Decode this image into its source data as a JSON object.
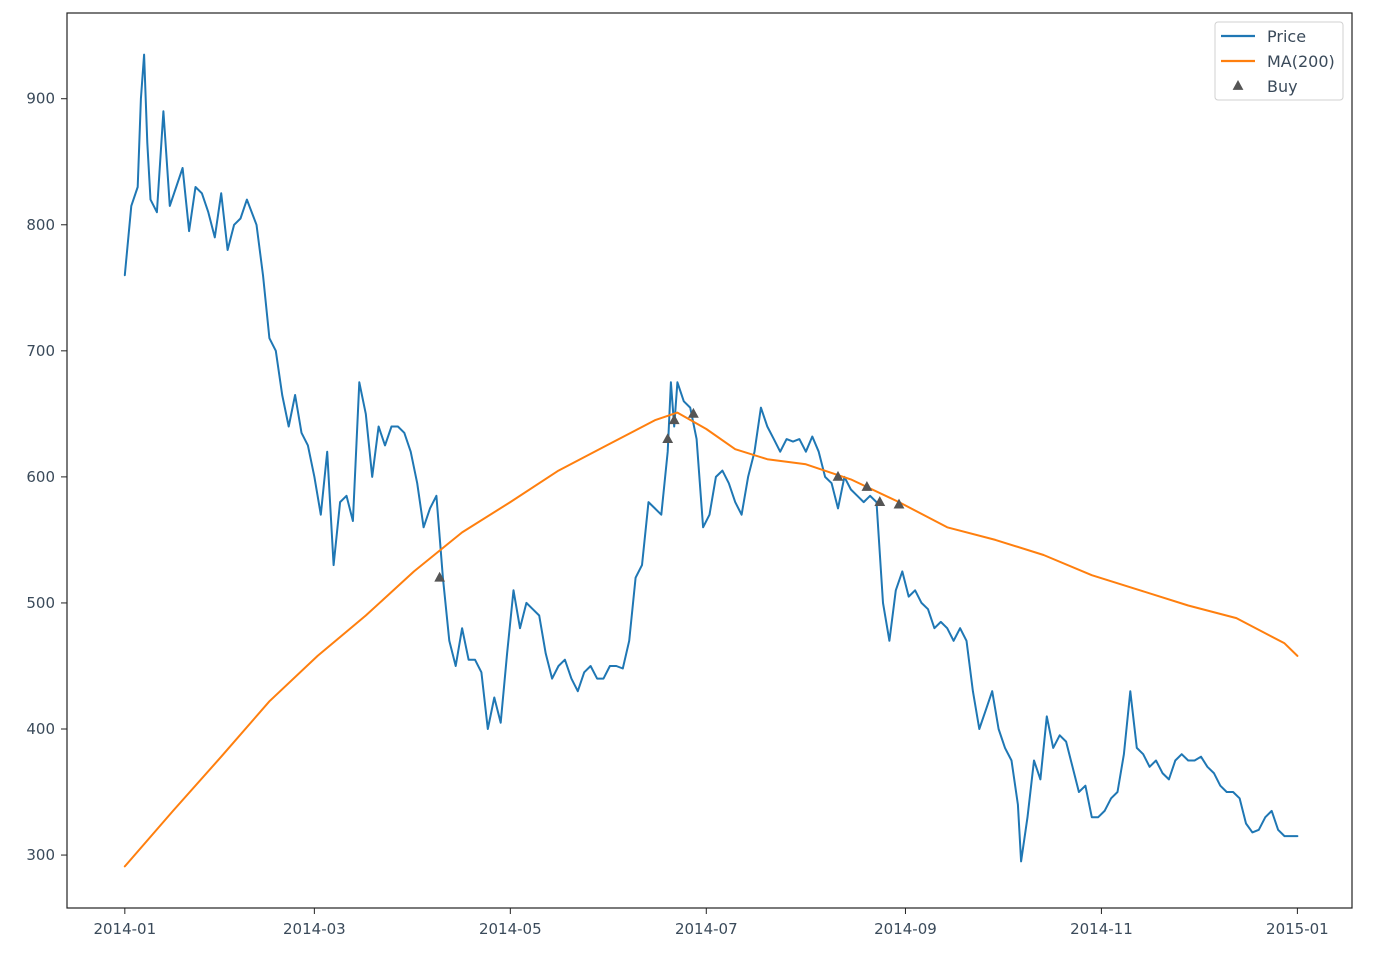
{
  "chart_data": {
    "type": "line",
    "title": "",
    "xlabel": "",
    "ylabel": "",
    "xlim": [
      "2013-12-14",
      "2015-01-18"
    ],
    "ylim": [
      258,
      968
    ],
    "x_ticks": [
      "2014-01",
      "2014-03",
      "2014-05",
      "2014-07",
      "2014-09",
      "2014-11",
      "2015-01"
    ],
    "y_ticks": [
      300,
      400,
      500,
      600,
      700,
      800,
      900
    ],
    "grid": false,
    "legend_position": "top-right",
    "series": [
      {
        "name": "Price",
        "color": "#1f77b4",
        "marker": "none",
        "points": [
          [
            "2014-01-01",
            760
          ],
          [
            "2014-01-03",
            815
          ],
          [
            "2014-01-05",
            830
          ],
          [
            "2014-01-06",
            900
          ],
          [
            "2014-01-07",
            935
          ],
          [
            "2014-01-08",
            865
          ],
          [
            "2014-01-09",
            820
          ],
          [
            "2014-01-11",
            810
          ],
          [
            "2014-01-13",
            890
          ],
          [
            "2014-01-15",
            815
          ],
          [
            "2014-01-17",
            830
          ],
          [
            "2014-01-19",
            845
          ],
          [
            "2014-01-21",
            795
          ],
          [
            "2014-01-23",
            830
          ],
          [
            "2014-01-25",
            825
          ],
          [
            "2014-01-27",
            810
          ],
          [
            "2014-01-29",
            790
          ],
          [
            "2014-01-31",
            825
          ],
          [
            "2014-02-02",
            780
          ],
          [
            "2014-02-04",
            800
          ],
          [
            "2014-02-06",
            805
          ],
          [
            "2014-02-08",
            820
          ],
          [
            "2014-02-11",
            800
          ],
          [
            "2014-02-13",
            760
          ],
          [
            "2014-02-15",
            710
          ],
          [
            "2014-02-17",
            700
          ],
          [
            "2014-02-19",
            665
          ],
          [
            "2014-02-21",
            640
          ],
          [
            "2014-02-23",
            665
          ],
          [
            "2014-02-25",
            635
          ],
          [
            "2014-02-27",
            625
          ],
          [
            "2014-03-01",
            600
          ],
          [
            "2014-03-03",
            570
          ],
          [
            "2014-03-05",
            620
          ],
          [
            "2014-03-07",
            530
          ],
          [
            "2014-03-09",
            580
          ],
          [
            "2014-03-11",
            585
          ],
          [
            "2014-03-13",
            565
          ],
          [
            "2014-03-15",
            675
          ],
          [
            "2014-03-17",
            650
          ],
          [
            "2014-03-19",
            600
          ],
          [
            "2014-03-21",
            640
          ],
          [
            "2014-03-23",
            625
          ],
          [
            "2014-03-25",
            640
          ],
          [
            "2014-03-27",
            640
          ],
          [
            "2014-03-29",
            635
          ],
          [
            "2014-03-31",
            620
          ],
          [
            "2014-04-02",
            595
          ],
          [
            "2014-04-04",
            560
          ],
          [
            "2014-04-06",
            575
          ],
          [
            "2014-04-08",
            585
          ],
          [
            "2014-04-10",
            520
          ],
          [
            "2014-04-12",
            470
          ],
          [
            "2014-04-14",
            450
          ],
          [
            "2014-04-16",
            480
          ],
          [
            "2014-04-18",
            455
          ],
          [
            "2014-04-20",
            455
          ],
          [
            "2014-04-22",
            445
          ],
          [
            "2014-04-24",
            400
          ],
          [
            "2014-04-26",
            425
          ],
          [
            "2014-04-28",
            405
          ],
          [
            "2014-04-30",
            460
          ],
          [
            "2014-05-02",
            510
          ],
          [
            "2014-05-04",
            480
          ],
          [
            "2014-05-06",
            500
          ],
          [
            "2014-05-08",
            495
          ],
          [
            "2014-05-10",
            490
          ],
          [
            "2014-05-12",
            460
          ],
          [
            "2014-05-14",
            440
          ],
          [
            "2014-05-16",
            450
          ],
          [
            "2014-05-18",
            455
          ],
          [
            "2014-05-20",
            440
          ],
          [
            "2014-05-22",
            430
          ],
          [
            "2014-05-24",
            445
          ],
          [
            "2014-05-26",
            450
          ],
          [
            "2014-05-28",
            440
          ],
          [
            "2014-05-30",
            440
          ],
          [
            "2014-06-01",
            450
          ],
          [
            "2014-06-03",
            450
          ],
          [
            "2014-06-05",
            448
          ],
          [
            "2014-06-07",
            470
          ],
          [
            "2014-06-09",
            520
          ],
          [
            "2014-06-11",
            530
          ],
          [
            "2014-06-13",
            580
          ],
          [
            "2014-06-15",
            575
          ],
          [
            "2014-06-17",
            570
          ],
          [
            "2014-06-19",
            620
          ],
          [
            "2014-06-20",
            675
          ],
          [
            "2014-06-21",
            640
          ],
          [
            "2014-06-22",
            675
          ],
          [
            "2014-06-24",
            660
          ],
          [
            "2014-06-26",
            655
          ],
          [
            "2014-06-28",
            630
          ],
          [
            "2014-06-30",
            560
          ],
          [
            "2014-07-02",
            570
          ],
          [
            "2014-07-04",
            600
          ],
          [
            "2014-07-06",
            605
          ],
          [
            "2014-07-08",
            595
          ],
          [
            "2014-07-10",
            580
          ],
          [
            "2014-07-12",
            570
          ],
          [
            "2014-07-14",
            600
          ],
          [
            "2014-07-16",
            620
          ],
          [
            "2014-07-18",
            655
          ],
          [
            "2014-07-20",
            640
          ],
          [
            "2014-07-22",
            630
          ],
          [
            "2014-07-24",
            620
          ],
          [
            "2014-07-26",
            630
          ],
          [
            "2014-07-28",
            628
          ],
          [
            "2014-07-30",
            630
          ],
          [
            "2014-08-01",
            620
          ],
          [
            "2014-08-03",
            632
          ],
          [
            "2014-08-05",
            620
          ],
          [
            "2014-08-07",
            600
          ],
          [
            "2014-08-09",
            595
          ],
          [
            "2014-08-11",
            575
          ],
          [
            "2014-08-13",
            600
          ],
          [
            "2014-08-15",
            590
          ],
          [
            "2014-08-17",
            585
          ],
          [
            "2014-08-19",
            580
          ],
          [
            "2014-08-21",
            585
          ],
          [
            "2014-08-23",
            580
          ],
          [
            "2014-08-25",
            500
          ],
          [
            "2014-08-27",
            470
          ],
          [
            "2014-08-29",
            510
          ],
          [
            "2014-08-31",
            525
          ],
          [
            "2014-09-02",
            505
          ],
          [
            "2014-09-04",
            510
          ],
          [
            "2014-09-06",
            500
          ],
          [
            "2014-09-08",
            495
          ],
          [
            "2014-09-10",
            480
          ],
          [
            "2014-09-12",
            485
          ],
          [
            "2014-09-14",
            480
          ],
          [
            "2014-09-16",
            470
          ],
          [
            "2014-09-18",
            480
          ],
          [
            "2014-09-20",
            470
          ],
          [
            "2014-09-22",
            430
          ],
          [
            "2014-09-24",
            400
          ],
          [
            "2014-09-26",
            415
          ],
          [
            "2014-09-28",
            430
          ],
          [
            "2014-09-30",
            400
          ],
          [
            "2014-10-02",
            385
          ],
          [
            "2014-10-04",
            375
          ],
          [
            "2014-10-06",
            340
          ],
          [
            "2014-10-07",
            295
          ],
          [
            "2014-10-09",
            330
          ],
          [
            "2014-10-11",
            375
          ],
          [
            "2014-10-13",
            360
          ],
          [
            "2014-10-15",
            410
          ],
          [
            "2014-10-17",
            385
          ],
          [
            "2014-10-19",
            395
          ],
          [
            "2014-10-21",
            390
          ],
          [
            "2014-10-23",
            370
          ],
          [
            "2014-10-25",
            350
          ],
          [
            "2014-10-27",
            355
          ],
          [
            "2014-10-29",
            330
          ],
          [
            "2014-10-31",
            330
          ],
          [
            "2014-11-02",
            335
          ],
          [
            "2014-11-04",
            345
          ],
          [
            "2014-11-06",
            350
          ],
          [
            "2014-11-08",
            380
          ],
          [
            "2014-11-10",
            430
          ],
          [
            "2014-11-12",
            385
          ],
          [
            "2014-11-14",
            380
          ],
          [
            "2014-11-16",
            370
          ],
          [
            "2014-11-18",
            375
          ],
          [
            "2014-11-20",
            365
          ],
          [
            "2014-11-22",
            360
          ],
          [
            "2014-11-24",
            375
          ],
          [
            "2014-11-26",
            380
          ],
          [
            "2014-11-28",
            375
          ],
          [
            "2014-11-30",
            375
          ],
          [
            "2014-12-02",
            378
          ],
          [
            "2014-12-04",
            370
          ],
          [
            "2014-12-06",
            365
          ],
          [
            "2014-12-08",
            355
          ],
          [
            "2014-12-10",
            350
          ],
          [
            "2014-12-12",
            350
          ],
          [
            "2014-12-14",
            345
          ],
          [
            "2014-12-16",
            325
          ],
          [
            "2014-12-18",
            318
          ],
          [
            "2014-12-20",
            320
          ],
          [
            "2014-12-22",
            330
          ],
          [
            "2014-12-24",
            335
          ],
          [
            "2014-12-26",
            320
          ],
          [
            "2014-12-28",
            315
          ],
          [
            "2014-12-30",
            315
          ],
          [
            "2015-01-01",
            315
          ]
        ]
      },
      {
        "name": "MA(200)",
        "color": "#ff7f0e",
        "marker": "none",
        "points": [
          [
            "2014-01-01",
            291
          ],
          [
            "2014-01-16",
            335
          ],
          [
            "2014-01-31",
            378
          ],
          [
            "2014-02-15",
            422
          ],
          [
            "2014-03-02",
            458
          ],
          [
            "2014-03-17",
            490
          ],
          [
            "2014-04-01",
            525
          ],
          [
            "2014-04-16",
            556
          ],
          [
            "2014-05-01",
            580
          ],
          [
            "2014-05-16",
            605
          ],
          [
            "2014-05-31",
            625
          ],
          [
            "2014-06-15",
            645
          ],
          [
            "2014-06-22",
            651
          ],
          [
            "2014-07-01",
            638
          ],
          [
            "2014-07-10",
            622
          ],
          [
            "2014-07-20",
            614
          ],
          [
            "2014-08-01",
            610
          ],
          [
            "2014-08-15",
            598
          ],
          [
            "2014-08-30",
            580
          ],
          [
            "2014-09-14",
            560
          ],
          [
            "2014-09-29",
            550
          ],
          [
            "2014-10-14",
            538
          ],
          [
            "2014-10-29",
            522
          ],
          [
            "2014-11-13",
            510
          ],
          [
            "2014-11-28",
            498
          ],
          [
            "2014-12-13",
            488
          ],
          [
            "2014-12-28",
            468
          ],
          [
            "2015-01-01",
            458
          ]
        ]
      },
      {
        "name": "Buy",
        "color": "#555555",
        "marker": "triangle",
        "points": [
          [
            "2014-04-09",
            520
          ],
          [
            "2014-06-19",
            630
          ],
          [
            "2014-06-21",
            645
          ],
          [
            "2014-06-27",
            650
          ],
          [
            "2014-08-11",
            600
          ],
          [
            "2014-08-20",
            592
          ],
          [
            "2014-08-24",
            580
          ],
          [
            "2014-08-30",
            578
          ]
        ]
      }
    ]
  }
}
